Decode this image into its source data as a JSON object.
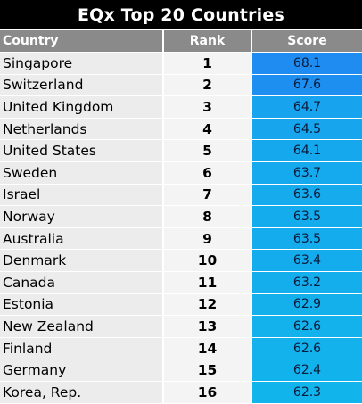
{
  "title": "EQx Top 20 Countries",
  "headers": {
    "country": "Country",
    "rank": "Rank",
    "score": "Score"
  },
  "colors": {
    "header_bg": "#8a8a8a",
    "title_bg": "#000000",
    "score_top": "#1e8cf0",
    "score_low": "#12b4ec"
  },
  "rows": [
    {
      "country": "Singapore",
      "rank": "1",
      "score": "68.1"
    },
    {
      "country": "Switzerland",
      "rank": "2",
      "score": "67.6"
    },
    {
      "country": "United Kingdom",
      "rank": "3",
      "score": "64.7"
    },
    {
      "country": "Netherlands",
      "rank": "4",
      "score": "64.5"
    },
    {
      "country": "United States",
      "rank": "5",
      "score": "64.1"
    },
    {
      "country": "Sweden",
      "rank": "6",
      "score": "63.7"
    },
    {
      "country": "Israel",
      "rank": "7",
      "score": "63.6"
    },
    {
      "country": "Norway",
      "rank": "8",
      "score": "63.5"
    },
    {
      "country": "Australia",
      "rank": "9",
      "score": "63.5"
    },
    {
      "country": "Denmark",
      "rank": "10",
      "score": "63.4"
    },
    {
      "country": "Canada",
      "rank": "11",
      "score": "63.2"
    },
    {
      "country": "Estonia",
      "rank": "12",
      "score": "62.9"
    },
    {
      "country": "New Zealand",
      "rank": "13",
      "score": "62.6"
    },
    {
      "country": "Finland",
      "rank": "14",
      "score": "62.6"
    },
    {
      "country": "Germany",
      "rank": "15",
      "score": "62.4"
    },
    {
      "country": "Korea, Rep.",
      "rank": "16",
      "score": "62.3"
    }
  ]
}
